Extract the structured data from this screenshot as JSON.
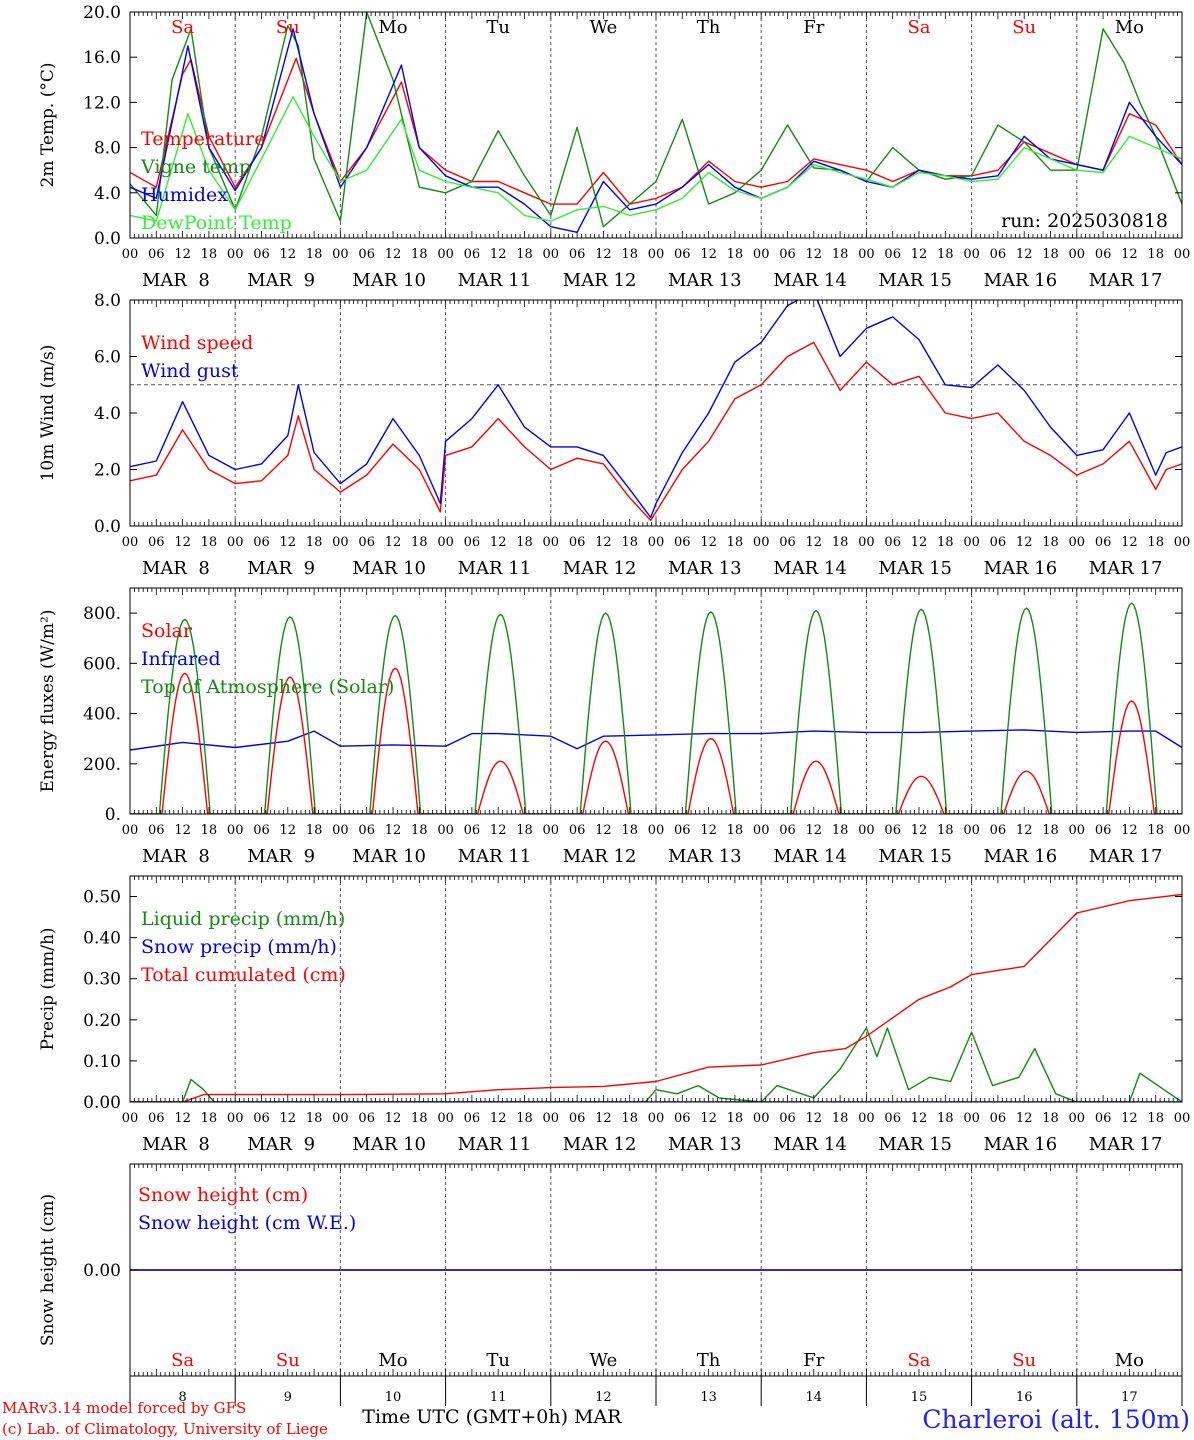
{
  "run_label": "run: 2025030818",
  "xaxis": {
    "hour_ticks": [
      "00",
      "06",
      "12",
      "18"
    ],
    "dates": [
      "MAR  8",
      "MAR  9",
      "MAR 10",
      "MAR 11",
      "MAR 12",
      "MAR 13",
      "MAR 14",
      "MAR 15",
      "MAR 16",
      "MAR 17"
    ],
    "day_names": [
      "Sa",
      "Su",
      "Mo",
      "Tu",
      "We",
      "Th",
      "Fr",
      "Sa",
      "Su",
      "Mo"
    ],
    "day_name_colors": [
      "#ff0000",
      "#ff0000",
      "#000000",
      "#000000",
      "#000000",
      "#000000",
      "#000000",
      "#ff0000",
      "#ff0000",
      "#000000"
    ],
    "bottom_day_numbers": [
      "8",
      "9",
      "10",
      "11",
      "12",
      "13",
      "14",
      "15",
      "16",
      "17"
    ],
    "bottom_title": "Time UTC (GMT+0h)",
    "bottom_month": "MAR"
  },
  "footer": {
    "model_line": "MARv3.14 model forced by GFS",
    "credit_line": "(c) Lab. of Climatology, University of Liege",
    "location": "Charleroi (alt. 150m)"
  },
  "colors": {
    "red": "#ff0000",
    "green": "#138a13",
    "blue": "#0000ee",
    "light_green": "#33ee33",
    "frame": "#000000"
  },
  "chart_data": [
    {
      "id": "temp",
      "type": "line",
      "ylabel": "2m Temp. (°C)",
      "ylim": [
        0,
        20
      ],
      "yticks": [
        "0.0",
        "4.0",
        "8.0",
        "12.0",
        "16.0",
        "20.0"
      ],
      "x_unit": "days since Mar 8 00 UTC",
      "series": [
        {
          "name": "Temperature",
          "color": "red",
          "x": [
            0,
            0.25,
            0.5,
            0.58,
            0.75,
            1,
            1.25,
            1.58,
            1.75,
            2,
            2.25,
            2.58,
            2.75,
            3,
            3.25,
            3.5,
            3.75,
            4,
            4.25,
            4.5,
            4.75,
            5,
            5.25,
            5.5,
            5.75,
            6,
            6.25,
            6.5,
            6.75,
            7,
            7.25,
            7.5,
            7.75,
            8,
            8.25,
            8.5,
            8.75,
            9,
            9.25,
            9.5,
            9.75,
            10
          ],
          "y": [
            5.8,
            4.5,
            14.5,
            15.8,
            9,
            4.5,
            8,
            15.9,
            11,
            5,
            8,
            13.8,
            8,
            6,
            5,
            5,
            4,
            3,
            3,
            5.8,
            3,
            3.5,
            4.5,
            6.8,
            5,
            4.5,
            5,
            7,
            6.5,
            6,
            5,
            6,
            5.5,
            5.5,
            6,
            8.5,
            7.5,
            6.5,
            6,
            11,
            10,
            6.5
          ]
        },
        {
          "name": "Vigne temp",
          "color": "green",
          "x": [
            0,
            0.25,
            0.4,
            0.58,
            0.75,
            1,
            1.25,
            1.5,
            1.6,
            1.75,
            2,
            2.25,
            2.5,
            2.75,
            3,
            3.25,
            3.5,
            3.75,
            4,
            4.25,
            4.5,
            4.75,
            5,
            5.25,
            5.5,
            5.75,
            6,
            6.25,
            6.5,
            6.75,
            7,
            7.25,
            7.5,
            7.75,
            8,
            8.25,
            8.5,
            8.75,
            9,
            9.25,
            9.45,
            9.6,
            9.75,
            10
          ],
          "y": [
            4.8,
            2,
            14,
            18.5,
            8,
            2.5,
            9,
            18.8,
            17,
            7,
            1.5,
            20,
            14,
            4.5,
            4,
            5,
            9.5,
            5.5,
            2,
            9.8,
            1,
            3,
            5,
            10.5,
            3,
            4,
            6,
            10,
            6.2,
            6,
            5,
            8,
            6,
            5.2,
            5.5,
            10,
            8.5,
            6,
            6,
            18.5,
            15.5,
            12,
            9,
            3
          ]
        },
        {
          "name": "Humidex",
          "color": "blue",
          "x": [
            0,
            0.25,
            0.55,
            0.75,
            1,
            1.25,
            1.55,
            1.75,
            2,
            2.25,
            2.58,
            2.75,
            3,
            3.25,
            3.5,
            3.75,
            4,
            4.25,
            4.5,
            4.75,
            5,
            5.25,
            5.5,
            5.75,
            6,
            6.25,
            6.5,
            6.75,
            7,
            7.25,
            7.5,
            7.75,
            8,
            8.25,
            8.5,
            8.75,
            9,
            9.25,
            9.5,
            9.75,
            10
          ],
          "y": [
            4.5,
            3.5,
            17,
            8,
            4.2,
            8,
            18.5,
            11,
            4.5,
            8,
            15.3,
            8,
            5.5,
            4.5,
            4.5,
            3,
            1,
            0.5,
            5,
            2.5,
            3,
            4.5,
            6.5,
            4.5,
            3.5,
            4.5,
            6.8,
            6,
            5,
            4.5,
            6,
            5.5,
            5.2,
            5.5,
            9,
            7,
            6.5,
            6,
            12,
            9,
            6.5
          ]
        },
        {
          "name": "DewPoint Temp",
          "color": "light_green",
          "x": [
            0,
            0.25,
            0.55,
            0.75,
            1,
            1.25,
            1.55,
            1.75,
            2,
            2.25,
            2.58,
            2.75,
            3,
            3.25,
            3.5,
            3.75,
            4,
            4.25,
            4.5,
            4.75,
            5,
            5.25,
            5.5,
            5.75,
            6,
            6.25,
            6.5,
            6.75,
            7,
            7.25,
            7.5,
            7.75,
            8,
            8.25,
            8.5,
            8.75,
            9,
            9.25,
            9.5,
            9.75,
            10
          ],
          "y": [
            2,
            1.5,
            11,
            6,
            2.5,
            7,
            12.5,
            9,
            5,
            6,
            10.5,
            6,
            5,
            4.5,
            4,
            2,
            1.5,
            2.5,
            2.8,
            2,
            2.5,
            3.5,
            5.8,
            4.2,
            3.5,
            4.5,
            6.5,
            5.8,
            5.2,
            4.5,
            5.8,
            5.5,
            5,
            5.2,
            8,
            7,
            6,
            5.8,
            9,
            8,
            7
          ]
        }
      ]
    },
    {
      "id": "wind",
      "type": "line",
      "ylabel": "10m Wind (m/s)",
      "ylim": [
        0,
        8
      ],
      "yticks": [
        "0.0",
        "2.0",
        "4.0",
        "6.0",
        "8.0"
      ],
      "reference_line": 5,
      "series": [
        {
          "name": "Wind speed",
          "color": "red",
          "x": [
            0,
            0.25,
            0.5,
            0.75,
            1,
            1.25,
            1.5,
            1.6,
            1.75,
            2,
            2.25,
            2.5,
            2.75,
            2.95,
            3,
            3.25,
            3.5,
            3.75,
            4,
            4.25,
            4.5,
            4.75,
            4.95,
            5,
            5.25,
            5.5,
            5.75,
            6,
            6.25,
            6.5,
            6.75,
            7,
            7.25,
            7.5,
            7.75,
            8,
            8.25,
            8.5,
            8.75,
            9,
            9.25,
            9.5,
            9.75,
            9.85,
            10
          ],
          "y": [
            1.6,
            1.8,
            3.4,
            2,
            1.5,
            1.6,
            2.5,
            3.9,
            2,
            1.2,
            1.8,
            2.9,
            2,
            0.5,
            2.5,
            2.8,
            3.8,
            2.8,
            2,
            2.4,
            2.2,
            1,
            0.2,
            0.5,
            2,
            3,
            4.5,
            5,
            6,
            6.5,
            4.8,
            5.8,
            5,
            5.3,
            4,
            3.8,
            4,
            3,
            2.5,
            1.8,
            2.2,
            3,
            1.3,
            2,
            2.2
          ]
        },
        {
          "name": "Wind gust",
          "color": "blue",
          "x": [
            0,
            0.25,
            0.5,
            0.75,
            1,
            1.25,
            1.5,
            1.6,
            1.75,
            2,
            2.25,
            2.5,
            2.75,
            2.95,
            3,
            3.25,
            3.5,
            3.75,
            4,
            4.25,
            4.5,
            4.75,
            4.95,
            5,
            5.25,
            5.5,
            5.75,
            6,
            6.25,
            6.5,
            6.75,
            7,
            7.25,
            7.5,
            7.75,
            8,
            8.25,
            8.5,
            8.75,
            9,
            9.25,
            9.5,
            9.75,
            9.85,
            10
          ],
          "y": [
            2.1,
            2.3,
            4.4,
            2.5,
            2,
            2.2,
            3.2,
            5,
            2.6,
            1.5,
            2.2,
            3.8,
            2.5,
            0.8,
            3,
            3.8,
            5,
            3.5,
            2.8,
            2.8,
            2.5,
            1.3,
            0.3,
            0.8,
            2.6,
            4,
            5.8,
            6.5,
            7.8,
            8.3,
            6,
            7,
            7.4,
            6.6,
            5,
            4.9,
            5.7,
            4.8,
            3.5,
            2.5,
            2.7,
            4,
            1.8,
            2.6,
            2.8
          ]
        }
      ]
    },
    {
      "id": "energy",
      "type": "line",
      "ylabel": "Energy fluxes (W/m²)",
      "ylim": [
        0,
        900
      ],
      "yticks": [
        "0.",
        "200.",
        "400.",
        "600.",
        "800."
      ],
      "diurnal_series": [
        {
          "name": "Solar",
          "color": "red",
          "peaks": [
            560,
            545,
            580,
            210,
            290,
            300,
            210,
            150,
            170,
            450
          ],
          "peak_hour": 12.5,
          "half_width_h": 5.2
        },
        {
          "name": "Top of Atmosphere (Solar)",
          "color": "green",
          "peaks": [
            775,
            785,
            790,
            795,
            800,
            805,
            810,
            815,
            820,
            840
          ],
          "peak_hour": 12.5,
          "half_width_h": 5.8
        }
      ],
      "series": [
        {
          "name": "Infrared",
          "color": "blue",
          "x": [
            0,
            0.5,
            1,
            1.5,
            1.75,
            2,
            2.5,
            3,
            3.25,
            3.5,
            4,
            4.25,
            4.5,
            5,
            5.5,
            6,
            6.5,
            7,
            7.5,
            8,
            8.5,
            9,
            9.5,
            9.75,
            10
          ],
          "y": [
            255,
            285,
            265,
            290,
            330,
            270,
            275,
            270,
            320,
            320,
            310,
            260,
            310,
            315,
            320,
            320,
            330,
            325,
            325,
            330,
            335,
            325,
            330,
            330,
            265
          ]
        }
      ]
    },
    {
      "id": "precip",
      "type": "line",
      "ylabel": "Precip (mm/h)",
      "ylim": [
        0,
        0.55
      ],
      "yticks": [
        "0.00",
        "0.10",
        "0.20",
        "0.30",
        "0.40",
        "0.50"
      ],
      "series": [
        {
          "name": "Liquid precip (mm/h)",
          "color": "green",
          "x": [
            0,
            0.5,
            0.58,
            0.7,
            0.8,
            1,
            4.9,
            5,
            5.2,
            5.4,
            5.6,
            6,
            6.15,
            6.5,
            6.75,
            7,
            7.1,
            7.2,
            7.4,
            7.6,
            7.8,
            8,
            8.2,
            8.45,
            8.6,
            8.8,
            9,
            9.5,
            9.6,
            10
          ],
          "y": [
            0,
            0,
            0.055,
            0.03,
            0,
            0,
            0,
            0.03,
            0.02,
            0.04,
            0.01,
            0,
            0.04,
            0.01,
            0.08,
            0.18,
            0.11,
            0.18,
            0.03,
            0.06,
            0.05,
            0.17,
            0.04,
            0.06,
            0.13,
            0.02,
            0,
            0,
            0.07,
            0
          ]
        },
        {
          "name": "Snow precip (mm/h)",
          "color": "blue",
          "x": [
            0,
            10
          ],
          "y": [
            0,
            0
          ]
        },
        {
          "name": "Total cumulated (cm)",
          "color": "red",
          "x": [
            0,
            0.5,
            0.7,
            1,
            2,
            3,
            3.5,
            4,
            4.5,
            5,
            5.5,
            6,
            6.5,
            6.8,
            7,
            7.5,
            7.8,
            8,
            8.5,
            9,
            9.5,
            10
          ],
          "y": [
            0,
            0,
            0.018,
            0.018,
            0.018,
            0.02,
            0.03,
            0.035,
            0.038,
            0.05,
            0.085,
            0.09,
            0.12,
            0.13,
            0.16,
            0.25,
            0.28,
            0.31,
            0.33,
            0.46,
            0.49,
            0.505
          ]
        }
      ]
    },
    {
      "id": "snow",
      "type": "line",
      "ylabel": "Snow height (cm)",
      "ylim": [
        -1,
        1
      ],
      "yticks": [
        "0.00"
      ],
      "series": [
        {
          "name": "Snow height (cm)",
          "color": "red",
          "x": [
            0,
            10
          ],
          "y": [
            0,
            0
          ]
        },
        {
          "name": "Snow height (cm W.E.)",
          "color": "blue",
          "x": [
            0,
            10
          ],
          "y": [
            0,
            0
          ]
        }
      ]
    }
  ]
}
